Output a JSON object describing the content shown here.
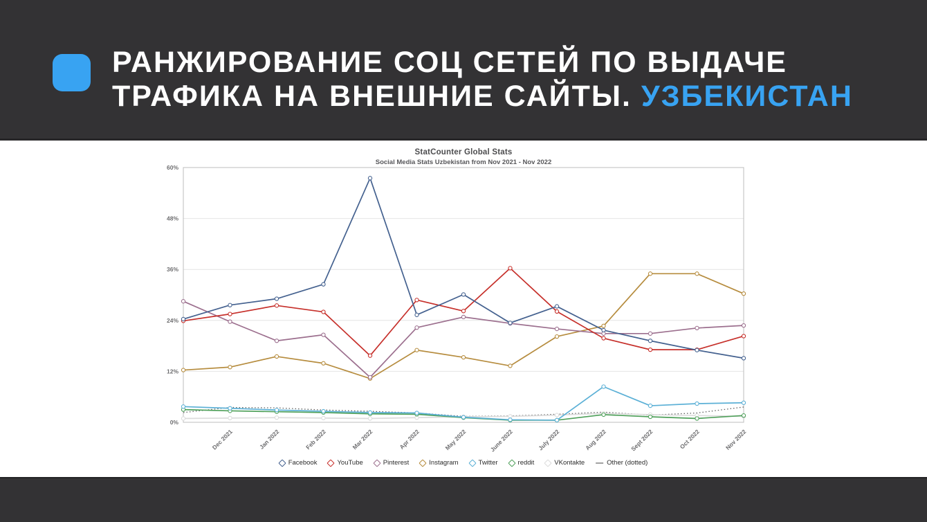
{
  "slide": {
    "title_line1": "РАНЖИРОВАНИЕ СОЦ СЕТЕЙ ПО ВЫДАЧЕ",
    "title_line2_prefix": "ТРАФИКА НА ВНЕШНИЕ САЙТЫ. ",
    "title_highlight": "УЗБЕКИСТАН",
    "accent_color": "#38a3f2",
    "header_bg": "#333234",
    "footer_bg": "#333234"
  },
  "chart_data": {
    "type": "line",
    "title": "StatCounter Global Stats",
    "subtitle": "Social Media Stats Uzbekistan from Nov 2021 - Nov 2022",
    "x": [
      "Nov 2021",
      "Dec 2021",
      "Jan 2022",
      "Feb 2022",
      "Mar 2022",
      "Apr 2022",
      "May 2022",
      "June 2022",
      "July 2022",
      "Aug 2022",
      "Sept 2022",
      "Oct 2022",
      "Nov 2022"
    ],
    "x_axis_note": "first point (Nov 2021) is unlabeled on the axis",
    "ylim": [
      0,
      60
    ],
    "y_ticks": [
      "0%",
      "12%",
      "24%",
      "36%",
      "48%",
      "60%"
    ],
    "grid": "horizontal",
    "legend_position": "bottom",
    "series": [
      {
        "name": "Facebook",
        "color": "#44618f",
        "style": "solid",
        "values": [
          24.3,
          27.6,
          29.1,
          32.5,
          57.5,
          25.3,
          30.1,
          23.4,
          27.3,
          21.7,
          19.2,
          17.0,
          15.1
        ]
      },
      {
        "name": "YouTube",
        "color": "#c62f2a",
        "style": "solid",
        "values": [
          23.9,
          25.5,
          27.5,
          26.0,
          15.7,
          28.8,
          26.2,
          36.3,
          26.1,
          19.8,
          17.1,
          17.1,
          20.3
        ]
      },
      {
        "name": "Pinterest",
        "color": "#9c6f8e",
        "style": "solid",
        "values": [
          28.5,
          23.7,
          19.2,
          20.6,
          10.6,
          22.3,
          24.8,
          23.3,
          22.0,
          20.9,
          20.9,
          22.2,
          22.8
        ]
      },
      {
        "name": "Instagram",
        "color": "#b68c3e",
        "style": "solid",
        "values": [
          12.3,
          13.0,
          15.5,
          13.9,
          10.3,
          17.0,
          15.3,
          13.3,
          20.2,
          22.7,
          35.0,
          35.0,
          30.3
        ]
      },
      {
        "name": "Twitter",
        "color": "#5bb0d6",
        "style": "solid",
        "values": [
          3.7,
          3.3,
          2.9,
          2.6,
          2.3,
          2.2,
          1.2,
          0.6,
          0.5,
          8.4,
          3.9,
          4.4,
          4.6
        ]
      },
      {
        "name": "reddit",
        "color": "#4fa05a",
        "style": "solid",
        "values": [
          3.0,
          2.7,
          2.5,
          2.3,
          2.0,
          1.9,
          1.1,
          0.5,
          0.5,
          1.8,
          1.3,
          0.9,
          1.6
        ]
      },
      {
        "name": "VKontakte",
        "color": "#dcdcdc",
        "style": "solid",
        "values": [
          0.9,
          1.0,
          1.1,
          1.0,
          0.9,
          1.1,
          1.3,
          1.4,
          1.7,
          2.1,
          1.8,
          1.6,
          1.4
        ]
      },
      {
        "name": "Other (dotted)",
        "color": "#5e5e5e",
        "style": "dotted",
        "values": [
          2.3,
          3.5,
          3.4,
          2.9,
          2.6,
          2.2,
          1.4,
          1.5,
          1.9,
          2.4,
          1.7,
          2.2,
          3.6
        ]
      }
    ]
  }
}
